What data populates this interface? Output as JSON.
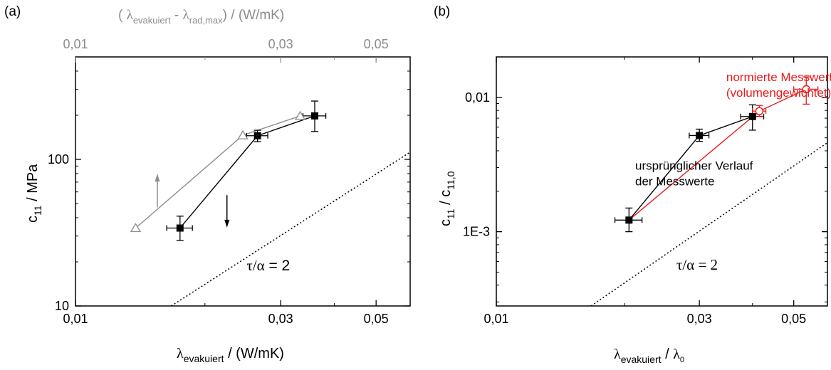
{
  "chart_data": [
    {
      "panel_label": "(a)",
      "type": "scatter",
      "xscale": "log",
      "yscale": "log",
      "xlim": [
        0.01,
        0.06
      ],
      "ylim": [
        10,
        500
      ],
      "x_ticks": [
        0.01,
        0.03,
        0.05
      ],
      "x_tick_labels": [
        "0,01",
        "0,03",
        "0,05"
      ],
      "y_ticks": [
        10,
        100
      ],
      "y_tick_labels": [
        "10",
        "100"
      ],
      "xlabel": {
        "a": "λ",
        "b": "evakuiert",
        "c": " / (W/mK)"
      },
      "ylabel": {
        "a": "c",
        "b": "11",
        "c": " / MPa"
      },
      "top_axis": {
        "label": {
          "a": "( ",
          "b": "λ",
          "c": "evakuiert",
          "d": " - ",
          "e": "λ",
          "f": "rad,max",
          "g": ") / (W/mK)"
        },
        "ticks": [
          0.01,
          0.03,
          0.05
        ],
        "tick_labels": [
          "0,01",
          "0,03",
          "0,05"
        ],
        "color": "#8c8c8c"
      },
      "series": [
        {
          "marker": "filled-square",
          "color": "#000000",
          "points": [
            {
              "x": 0.0175,
              "y": 34,
              "xerr": 0.0012,
              "ylo": 28,
              "yhi": 41
            },
            {
              "x": 0.0265,
              "y": 145,
              "xerr": 0.0015,
              "ylo": 132,
              "yhi": 158
            },
            {
              "x": 0.036,
              "y": 198,
              "xerr": 0.0022,
              "ylo": 155,
              "yhi": 250
            }
          ]
        },
        {
          "marker": "open-triangle",
          "color": "#8c8c8c",
          "points": [
            {
              "x": 0.0138,
              "y": 34
            },
            {
              "x": 0.0245,
              "y": 146
            },
            {
              "x": 0.0333,
              "y": 198
            }
          ]
        }
      ],
      "reference_line": {
        "style": "dotted",
        "from": {
          "x": 0.0167,
          "y": 10
        },
        "to": {
          "x": 0.06,
          "y": 112
        }
      },
      "annotations": [
        {
          "a": "τ/α",
          "b": " = 2",
          "x": 0.025,
          "y": 17.5
        },
        {
          "arrow": "up",
          "color": "#8c8c8c",
          "x": 0.0155,
          "y_from": 47,
          "y_to": 78
        },
        {
          "arrow": "down",
          "color": "#000000",
          "x": 0.0225,
          "y_from": 57,
          "y_to": 35
        }
      ]
    },
    {
      "panel_label": "(b)",
      "type": "scatter",
      "xscale": "log",
      "yscale": "log",
      "xlim": [
        0.01,
        0.06
      ],
      "ylim": [
        0.00028,
        0.02
      ],
      "x_ticks": [
        0.01,
        0.03,
        0.05
      ],
      "x_tick_labels": [
        "0,01",
        "0,03",
        "0,05"
      ],
      "y_ticks": [
        0.001,
        0.01
      ],
      "y_tick_labels": [
        "1E-3",
        "0,01"
      ],
      "xlabel": {
        "a": "λ",
        "b": "evakuiert",
        "c": " / ",
        "d": "λ",
        "e": "0"
      },
      "ylabel": {
        "a": "c",
        "b": "11",
        "c": " / c",
        "d": "11,0"
      },
      "series": [
        {
          "name": "ursprünglicher Verlauf der Messwerte",
          "marker": "filled-square",
          "color": "#000000",
          "points": [
            {
              "x": 0.0205,
              "y": 0.00122,
              "xerr": 0.0015,
              "ylo": 0.001,
              "yhi": 0.0015
            },
            {
              "x": 0.03,
              "y": 0.0052,
              "xerr": 0.0016,
              "ylo": 0.0047,
              "yhi": 0.0058
            },
            {
              "x": 0.04,
              "y": 0.0072,
              "xerr": 0.0025,
              "ylo": 0.0057,
              "yhi": 0.0088
            }
          ]
        },
        {
          "name": "normierte Messwerte (volumengewichtet)",
          "marker": "open-circle",
          "color": "#e8191a",
          "points": [
            {
              "x": 0.0205,
              "y": 0.00122
            },
            {
              "x": 0.0415,
              "y": 0.0079,
              "xerr": 0.0015,
              "ylo": 0.0072,
              "yhi": 0.0087
            },
            {
              "x": 0.0535,
              "y": 0.0115,
              "xerr": 0.0035,
              "ylo": 0.0089,
              "yhi": 0.0142
            }
          ]
        }
      ],
      "reference_line": {
        "style": "dotted",
        "from": {
          "x": 0.0167,
          "y": 0.00028
        },
        "to": {
          "x": 0.06,
          "y": 0.0046
        }
      },
      "annotations": [
        {
          "lines": [
            "ursprünglicher Verlauf",
            "der Messwerte"
          ],
          "x": 0.0212,
          "y": 0.0029
        },
        {
          "lines": [
            "normierte Messwerte",
            "(volumengewichtet)"
          ],
          "x": 0.0347,
          "y": 0.0132,
          "color": "#e8191a"
        },
        {
          "a": "τ/α",
          "b": " = 2",
          "x": 0.0265,
          "y": 0.00052
        }
      ]
    }
  ]
}
